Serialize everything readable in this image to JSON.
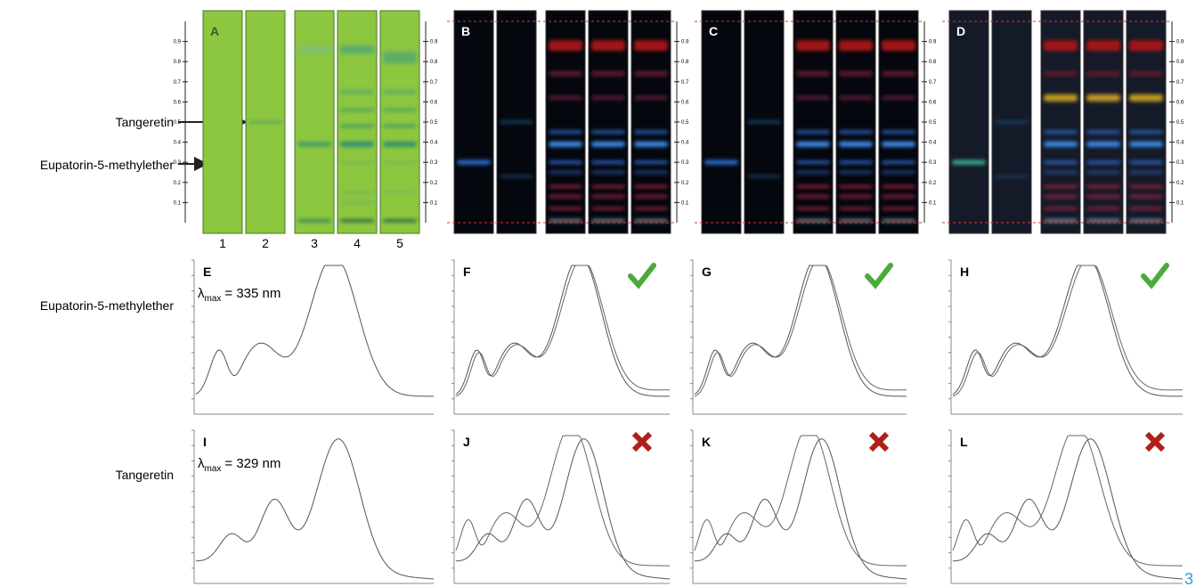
{
  "labels": {
    "tangeretin": "Tangeretin",
    "eupatorin": "Eupatorin-5-methylether"
  },
  "tlc": {
    "panels": [
      "A",
      "B",
      "C",
      "D"
    ],
    "lanes": [
      "1",
      "2",
      "3",
      "4",
      "5"
    ],
    "rf_ticks": [
      0.1,
      0.2,
      0.3,
      0.4,
      0.5,
      0.6,
      0.7,
      0.8,
      0.9
    ]
  },
  "spectra": {
    "panels": [
      "E",
      "F",
      "G",
      "H",
      "I",
      "J",
      "K",
      "L"
    ],
    "lambda_max": [
      {
        "symbol": "λ",
        "sub": "max",
        "text": "= 335 nm"
      },
      {
        "symbol": "λ",
        "sub": "max",
        "text": "= 329 nm"
      }
    ]
  },
  "page_number": "3"
}
